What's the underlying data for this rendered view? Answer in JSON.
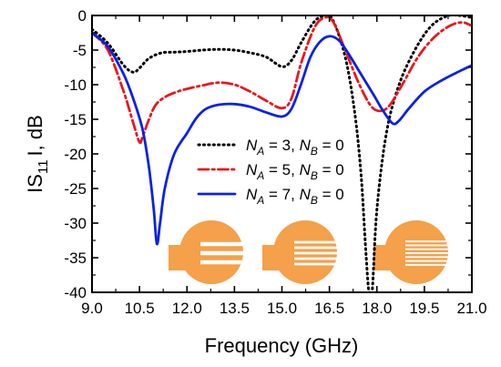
{
  "chart_data": {
    "type": "line",
    "title": "",
    "xlabel": "Frequency (GHz)",
    "ylabel": {
      "main": "IS",
      "sub": "11",
      "after": "I, dB"
    },
    "xlim": [
      9.0,
      21.0
    ],
    "ylim": [
      -40,
      0
    ],
    "xticks": [
      "9.0",
      "10.5",
      "12.0",
      "13.5",
      "15.0",
      "16.5",
      "18.0",
      "19.5",
      "21.0"
    ],
    "yticks": [
      "0",
      "-5",
      "-10",
      "-15",
      "-20",
      "-25",
      "-30",
      "-35",
      "-40"
    ],
    "grid": false,
    "legend_position": "center-right",
    "series": [
      {
        "legend": {
          "a": "N",
          "a_sub": "A",
          "a_val": " = 3, ",
          "b": "N",
          "b_sub": "B",
          "b_val": " = 0"
        },
        "color": "#000000",
        "style": "dotted",
        "x": [
          9.0,
          9.5,
          10.0,
          10.3,
          10.5,
          10.8,
          11.2,
          11.6,
          12.0,
          12.5,
          13.0,
          13.5,
          14.0,
          14.5,
          15.0,
          15.3,
          15.6,
          16.0,
          16.3,
          16.6,
          17.0,
          17.3,
          17.5,
          17.65,
          17.75,
          17.85,
          18.0,
          18.3,
          18.7,
          19.2,
          19.7,
          20.2,
          20.6,
          21.0
        ],
        "y": [
          -2.0,
          -4.0,
          -7.2,
          -8.2,
          -7.6,
          -6.2,
          -5.4,
          -5.3,
          -5.2,
          -5.0,
          -4.9,
          -5.0,
          -5.4,
          -6.0,
          -7.4,
          -6.5,
          -4.0,
          -1.0,
          -0.1,
          -0.6,
          -6.0,
          -14.0,
          -23.0,
          -34.0,
          -40.0,
          -40.0,
          -28.0,
          -17.0,
          -10.0,
          -5.0,
          -1.6,
          -0.1,
          0.0,
          -0.3
        ]
      },
      {
        "legend": {
          "a": "N",
          "a_sub": "A",
          "a_val": " = 5, ",
          "b": "N",
          "b_sub": "B",
          "b_val": " = 0"
        },
        "color": "#e8171d",
        "style": "dashdot",
        "x": [
          9.0,
          9.5,
          10.0,
          10.3,
          10.5,
          10.6,
          10.8,
          11.0,
          11.3,
          11.7,
          12.0,
          12.5,
          13.0,
          13.5,
          14.0,
          14.5,
          15.0,
          15.3,
          15.6,
          16.0,
          16.3,
          16.6,
          17.0,
          17.4,
          17.8,
          18.1,
          18.4,
          18.8,
          19.3,
          19.8,
          20.3,
          20.7,
          21.0
        ],
        "y": [
          -2.5,
          -5.0,
          -11.0,
          -15.5,
          -18.3,
          -17.5,
          -15.0,
          -13.0,
          -11.8,
          -11.0,
          -10.6,
          -10.1,
          -9.7,
          -10.0,
          -11.0,
          -12.3,
          -13.4,
          -12.0,
          -7.0,
          -2.0,
          -0.4,
          -0.8,
          -5.0,
          -9.5,
          -13.0,
          -13.8,
          -13.0,
          -10.0,
          -6.0,
          -3.2,
          -1.5,
          -1.0,
          -1.5
        ]
      },
      {
        "legend": {
          "a": "N",
          "a_sub": "A",
          "a_val": " = 7, ",
          "b": "N",
          "b_sub": "B",
          "b_val": " = 0"
        },
        "color": "#0a22e6",
        "style": "solid",
        "x": [
          9.0,
          9.5,
          10.0,
          10.3,
          10.6,
          10.8,
          10.95,
          11.05,
          11.15,
          11.3,
          11.6,
          12.0,
          12.3,
          12.6,
          13.0,
          13.5,
          14.0,
          14.5,
          15.0,
          15.3,
          15.6,
          15.9,
          16.2,
          16.5,
          16.8,
          17.1,
          17.5,
          17.9,
          18.2,
          18.5,
          18.7,
          19.0,
          19.5,
          20.0,
          20.5,
          21.0
        ],
        "y": [
          -2.5,
          -4.5,
          -8.5,
          -12.0,
          -16.5,
          -22.0,
          -28.0,
          -33.0,
          -30.0,
          -25.0,
          -20.0,
          -17.0,
          -14.8,
          -13.5,
          -12.9,
          -12.8,
          -13.2,
          -14.0,
          -14.6,
          -13.5,
          -10.0,
          -6.0,
          -3.8,
          -3.0,
          -3.6,
          -5.5,
          -8.5,
          -11.5,
          -13.8,
          -15.6,
          -15.2,
          -13.5,
          -11.0,
          -9.5,
          -8.3,
          -7.2
        ]
      }
    ],
    "insets": [
      {
        "name": "antenna-N3",
        "fingers": 3,
        "color": "#f5a04a"
      },
      {
        "name": "antenna-N5",
        "fingers": 5,
        "color": "#f5a04a"
      },
      {
        "name": "antenna-N7",
        "fingers": 7,
        "color": "#f5a04a"
      }
    ]
  }
}
